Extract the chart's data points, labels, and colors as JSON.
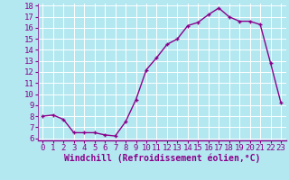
{
  "x": [
    0,
    1,
    2,
    3,
    4,
    5,
    6,
    7,
    8,
    9,
    10,
    11,
    12,
    13,
    14,
    15,
    16,
    17,
    18,
    19,
    20,
    21,
    22,
    23
  ],
  "y": [
    8.0,
    8.1,
    7.7,
    6.5,
    6.5,
    6.5,
    6.3,
    6.2,
    7.5,
    9.5,
    12.2,
    13.3,
    14.5,
    15.0,
    16.2,
    16.5,
    17.2,
    17.8,
    17.0,
    16.6,
    16.6,
    16.3,
    12.8,
    9.2
  ],
  "line_color": "#8B008B",
  "marker": "+",
  "bg_color": "#b3e8f0",
  "grid_color": "#ffffff",
  "xlabel": "Windchill (Refroidissement éolien,°C)",
  "tick_color": "#8B008B",
  "ylim": [
    5.8,
    18.2
  ],
  "yticks": [
    6,
    7,
    8,
    9,
    10,
    11,
    12,
    13,
    14,
    15,
    16,
    17,
    18
  ],
  "xticks": [
    0,
    1,
    2,
    3,
    4,
    5,
    6,
    7,
    8,
    9,
    10,
    11,
    12,
    13,
    14,
    15,
    16,
    17,
    18,
    19,
    20,
    21,
    22,
    23
  ],
  "xlabel_fontsize": 7.0,
  "tick_fontsize": 6.5,
  "line_width": 1.0,
  "marker_size": 3.5,
  "marker_edge_width": 1.0
}
